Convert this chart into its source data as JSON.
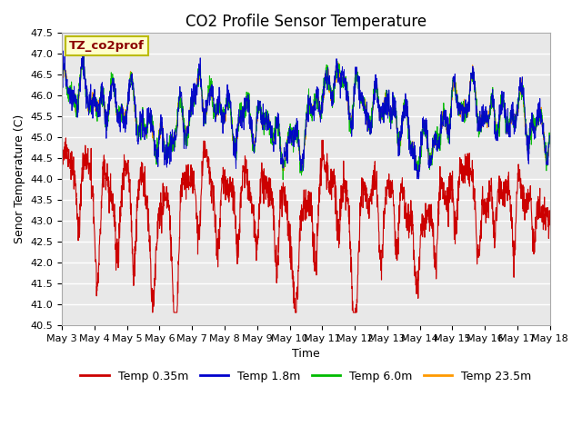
{
  "title": "CO2 Profile Sensor Temperature",
  "xlabel": "Time",
  "ylabel": "Senor Temperature (C)",
  "ylim": [
    40.5,
    47.5
  ],
  "x_tick_labels": [
    "May 3",
    "May 4",
    "May 5",
    "May 6",
    "May 7",
    "May 8",
    "May 9",
    "May 10",
    "May 11",
    "May 12",
    "May 13",
    "May 14",
    "May 15",
    "May 16",
    "May 17",
    "May 18"
  ],
  "yticks": [
    40.5,
    41.0,
    41.5,
    42.0,
    42.5,
    43.0,
    43.5,
    44.0,
    44.5,
    45.0,
    45.5,
    46.0,
    46.5,
    47.0,
    47.5
  ],
  "legend_labels": [
    "Temp 0.35m",
    "Temp 1.8m",
    "Temp 6.0m",
    "Temp 23.5m"
  ],
  "legend_colors": [
    "#cc0000",
    "#0000cc",
    "#00bb00",
    "#ff9900"
  ],
  "annotation_text": "TZ_co2prof",
  "annotation_color": "#8b0000",
  "annotation_bg": "#ffffcc",
  "annotation_border": "#bbbb00",
  "bg_color": "#e8e8e8",
  "title_fontsize": 12,
  "axis_label_fontsize": 9,
  "tick_fontsize": 8,
  "legend_fontsize": 9,
  "n_points": 2160,
  "seed": 7
}
